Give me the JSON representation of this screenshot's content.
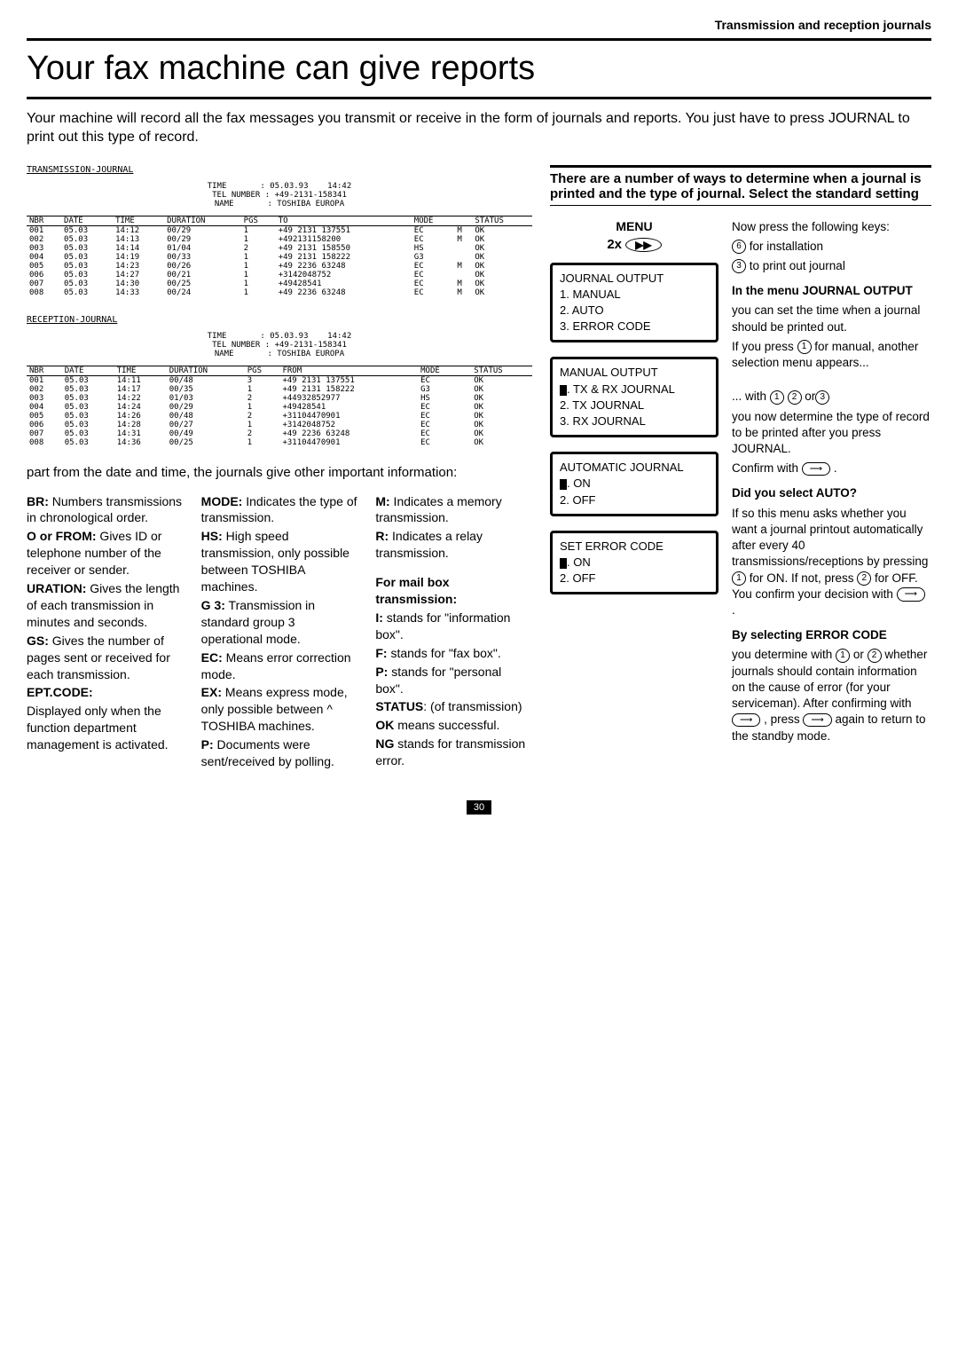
{
  "breadcrumb": "Transmission and reception journals",
  "title": "Your fax machine can give reports",
  "intro": "Your machine will record all the fax messages you transmit or receive in the form of journals and reports. You just have to press JOURNAL to print out this type of record.",
  "txJournal": {
    "title": "TRANSMISSION-JOURNAL",
    "header": "TIME       : 05.03.93    14:42\nTEL NUMBER : +49-2131-158341\nNAME       : TOSHIBA EUROPA",
    "columns": [
      "NBR",
      "DATE",
      "TIME",
      "DURATION",
      "PGS",
      "TO",
      "MODE",
      "",
      "STATUS"
    ],
    "rows": [
      [
        "001",
        "05.03",
        "14:12",
        "00/29",
        "1",
        "+49 2131 137551",
        "EC",
        "M",
        "OK"
      ],
      [
        "002",
        "05.03",
        "14:13",
        "00/29",
        "1",
        "+492131158200",
        "EC",
        "M",
        "OK"
      ],
      [
        "003",
        "05.03",
        "14:14",
        "01/04",
        "2",
        "+49 2131 158550",
        "HS",
        "",
        "OK"
      ],
      [
        "004",
        "05.03",
        "14:19",
        "00/33",
        "1",
        "+49 2131 158222",
        "G3",
        "",
        "OK"
      ],
      [
        "005",
        "05.03",
        "14:23",
        "00/26",
        "1",
        "+49 2236 63248",
        "EC",
        "M",
        "OK"
      ],
      [
        "006",
        "05.03",
        "14:27",
        "00/21",
        "1",
        "+3142048752",
        "EC",
        "",
        "OK"
      ],
      [
        "007",
        "05.03",
        "14:30",
        "00/25",
        "1",
        "+49428541",
        "EC",
        "M",
        "OK"
      ],
      [
        "008",
        "05.03",
        "14:33",
        "00/24",
        "1",
        "+49 2236 63248",
        "EC",
        "M",
        "OK"
      ]
    ]
  },
  "rxJournal": {
    "title": "RECEPTION-JOURNAL",
    "header": "TIME       : 05.03.93    14:42\nTEL NUMBER : +49-2131-158341\nNAME       : TOSHIBA EUROPA",
    "columns": [
      "NBR",
      "DATE",
      "TIME",
      "DURATION",
      "PGS",
      "FROM",
      "MODE",
      "",
      "STATUS"
    ],
    "rows": [
      [
        "001",
        "05.03",
        "14:11",
        "00/48",
        "3",
        "+49 2131 137551",
        "EC",
        "",
        "OK"
      ],
      [
        "002",
        "05.03",
        "14:17",
        "00/35",
        "1",
        "+49 2131 158222",
        "G3",
        "",
        "OK"
      ],
      [
        "003",
        "05.03",
        "14:22",
        "01/03",
        "2",
        "+44932852977",
        "HS",
        "",
        "OK"
      ],
      [
        "004",
        "05.03",
        "14:24",
        "00/29",
        "1",
        "+49428541",
        "EC",
        "",
        "OK"
      ],
      [
        "005",
        "05.03",
        "14:26",
        "00/48",
        "2",
        "+31104470901",
        "EC",
        "",
        "OK"
      ],
      [
        "006",
        "05.03",
        "14:28",
        "00/27",
        "1",
        "+3142048752",
        "EC",
        "",
        "OK"
      ],
      [
        "007",
        "05.03",
        "14:31",
        "00/49",
        "2",
        "+49 2236 63248",
        "EC",
        "",
        "OK"
      ],
      [
        "008",
        "05.03",
        "14:36",
        "00/25",
        "1",
        "+31104470901",
        "EC",
        "",
        "OK"
      ]
    ]
  },
  "partFrom": "part from the date and time, the journals give other important information:",
  "defs": {
    "col1": {
      "br": "BR:",
      "brText": " Numbers transmissions in chronological order.",
      "o": "O or FROM:",
      "oText": " Gives ID or telephone number of the receiver or sender.",
      "ur": "URATION:",
      "urText": " Gives the length of each transmission in minutes and seconds.",
      "gs": "GS:",
      "gsText": " Gives the number of pages sent or received for each transmission.",
      "ept": "EPT.CODE:",
      "eptText": "Displayed only when the function department management is activated."
    },
    "col2": {
      "mode": "MODE:",
      "modeText": " Indicates the type of transmission.",
      "hs": "HS:",
      "hsText": " High speed transmission, only possible between TOSHIBA machines.",
      "g3": "G 3:",
      "g3Text": " Transmission in standard group 3 operational mode.",
      "ec": "EC:",
      "ecText": " Means error correction mode.",
      "ex": "EX:",
      "exText": " Means express mode, only possible between ^ TOSHIBA machines.",
      "p": "P:",
      "pText": " Documents were sent/received by polling."
    },
    "col3": {
      "m": "M:",
      "mText": " Indicates a memory transmission.",
      "r": "R:",
      "rText": " Indicates a relay transmission.",
      "mailHead": "For mail box transmission:",
      "i": "I:",
      "iText": " stands for \"information box\".",
      "f": "F:",
      "fText": " stands for \"fax box\".",
      "pp": "P:",
      "ppText": " stands for \"personal box\".",
      "status": "STATUS",
      "statusText": ": (of transmission)",
      "ok": "OK",
      "okText": " means successful.",
      "ng": "NG",
      "ngText": " stands for transmission error."
    }
  },
  "rightHeader": "There are a number of ways to determine when a journal is printed and the type of journal. Select the standard setting",
  "menu": {
    "label": "MENU",
    "twoX": "2x",
    "arrow": "▶▶"
  },
  "lcd1": {
    "l0": "JOURNAL OUTPUT",
    "l1": "1. MANUAL",
    "l2": "2. AUTO",
    "l3": "3. ERROR CODE"
  },
  "lcd2": {
    "l0": "MANUAL OUTPUT",
    "l1": ". TX & RX JOURNAL",
    "l2": "2. TX JOURNAL",
    "l3": "3. RX JOURNAL"
  },
  "lcd3": {
    "l0": "AUTOMATIC JOURNAL",
    "l1": ". ON",
    "l2": "2. OFF"
  },
  "lcd4": {
    "l0": "SET ERROR CODE",
    "l1": ". ON",
    "l2": "2. OFF"
  },
  "flow": {
    "p1a": "Now press the following keys:",
    "p1b": " for installation",
    "p1c": " to print out journal",
    "h2": "In the menu JOURNAL OUTPUT",
    "p2a": "you can set the time when a journal should be printed out.",
    "p2b": "If you press ",
    "p2c": " for manual, another selection menu appears...",
    "p3a": "... with ",
    "p3b": " or",
    "p3c": "you now determine the type of record to be printed after you press JOURNAL.",
    "p3d": "Confirm with ",
    "h3": "Did you select AUTO?",
    "p4a": "If so this menu asks whether you want a journal printout automatically after every 40 transmissions/receptions by pressing ",
    "p4b": " for ON. If not, press ",
    "p4c": " for OFF. You confirm your decision with ",
    "h4": "By selecting ERROR CODE",
    "p5a": "you determine with ",
    "p5b": " or ",
    "p5c": " whether journals should contain information on the cause of error (for your serviceman). After confirming with ",
    "p5d": " , press ",
    "p5e": " again to return to the standby mode."
  },
  "keys": {
    "k1": "1",
    "k2": "2",
    "k3": "3",
    "k6": "6",
    "enter": "⟶"
  },
  "pageNum": "30"
}
